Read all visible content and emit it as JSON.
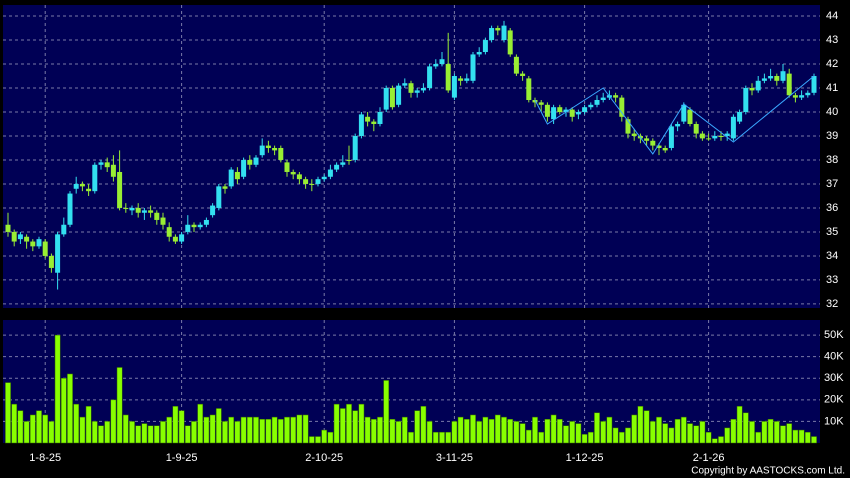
{
  "chart_data": {
    "type": "candlestick",
    "categories": [
      null,
      null,
      null,
      null,
      null,
      null,
      "1-8-25",
      null,
      null,
      null,
      null,
      null,
      null,
      null,
      null,
      null,
      null,
      null,
      null,
      null,
      null,
      null,
      null,
      null,
      null,
      null,
      null,
      null,
      "1-9-25",
      null,
      null,
      null,
      null,
      null,
      null,
      null,
      null,
      null,
      null,
      null,
      null,
      null,
      null,
      null,
      null,
      null,
      null,
      null,
      null,
      null,
      null,
      "2-10-25",
      null,
      null,
      null,
      null,
      null,
      null,
      null,
      null,
      null,
      null,
      null,
      null,
      null,
      null,
      null,
      null,
      null,
      null,
      null,
      null,
      "3-11-25",
      null,
      null,
      null,
      null,
      null,
      null,
      null,
      null,
      null,
      null,
      null,
      null,
      null,
      null,
      null,
      null,
      null,
      null,
      null,
      null,
      "1-12-25",
      null,
      null,
      null,
      null,
      null,
      null,
      null,
      null,
      null,
      null,
      null,
      null,
      null,
      null,
      null,
      null,
      null,
      null,
      null,
      "2-1-26",
      null,
      null,
      null,
      null,
      null,
      null,
      null,
      null,
      null,
      null,
      null,
      null,
      null,
      null,
      null,
      null,
      null
    ],
    "open": [
      35.3,
      35.0,
      34.7,
      34.8,
      34.6,
      34.4,
      34.6,
      34.0,
      33.3,
      34.9,
      35.3,
      36.8,
      37.0,
      36.8,
      36.7,
      37.8,
      37.9,
      37.8,
      37.5,
      36.0,
      35.9,
      36.0,
      35.8,
      35.9,
      35.8,
      35.6,
      35.2,
      34.8,
      34.6,
      35.0,
      35.3,
      35.2,
      35.3,
      35.7,
      36.0,
      36.9,
      36.9,
      37.5,
      37.3,
      38.0,
      37.8,
      38.2,
      38.6,
      38.5,
      38.5,
      37.9,
      37.5,
      37.4,
      37.2,
      37.0,
      37.0,
      37.2,
      37.3,
      37.6,
      37.8,
      38.0,
      38.0,
      39.0,
      39.8,
      39.6,
      39.5,
      40.1,
      41.0,
      40.3,
      41.1,
      41.2,
      40.8,
      40.9,
      41.0,
      41.9,
      42.0,
      42.0,
      40.6,
      41.4,
      41.3,
      41.3,
      42.4,
      42.5,
      43.0,
      43.5,
      43.0,
      43.4,
      42.3,
      41.6,
      41.4,
      40.5,
      40.4,
      40.3,
      39.7,
      40.2,
      40.0,
      40.1,
      39.9,
      40.0,
      40.2,
      40.3,
      40.5,
      40.6,
      40.7,
      40.6,
      39.7,
      39.1,
      39.0,
      38.9,
      38.8,
      38.6,
      38.5,
      38.5,
      39.4,
      39.6,
      40.1,
      39.5,
      39.1,
      38.9,
      38.9,
      39.0,
      39.0,
      38.9,
      39.6,
      40.0,
      41.0,
      40.9,
      41.3,
      41.4,
      41.5,
      41.3,
      41.6,
      40.7,
      40.6,
      40.7,
      40.8
    ],
    "high": [
      35.8,
      35.1,
      35.0,
      34.9,
      34.7,
      34.8,
      34.7,
      34.1,
      35.0,
      35.6,
      36.7,
      37.3,
      37.1,
      37.0,
      37.9,
      38.0,
      38.1,
      38.2,
      38.4,
      36.2,
      36.1,
      36.2,
      36.0,
      36.1,
      35.9,
      35.8,
      35.4,
      34.9,
      35.0,
      35.7,
      35.4,
      35.4,
      35.6,
      36.2,
      37.0,
      37.0,
      37.7,
      37.7,
      38.1,
      38.2,
      38.2,
      38.9,
      38.8,
      38.6,
      38.6,
      38.0,
      37.6,
      37.5,
      37.3,
      37.2,
      37.3,
      37.4,
      37.8,
      37.9,
      38.2,
      38.6,
      39.1,
      40.0,
      40.0,
      39.7,
      40.2,
      41.1,
      41.1,
      41.2,
      41.4,
      41.3,
      41.0,
      41.2,
      42.0,
      42.2,
      42.5,
      43.3,
      41.6,
      41.5,
      41.6,
      42.5,
      42.7,
      43.1,
      43.6,
      43.6,
      43.8,
      43.5,
      42.4,
      41.7,
      41.5,
      40.6,
      40.5,
      40.4,
      40.3,
      40.3,
      40.2,
      40.2,
      40.1,
      40.3,
      40.4,
      40.7,
      40.8,
      40.9,
      40.8,
      40.7,
      39.8,
      39.3,
      39.1,
      39.0,
      38.9,
      38.7,
      38.6,
      39.5,
      39.6,
      40.4,
      40.2,
      39.6,
      39.2,
      39.1,
      39.2,
      39.2,
      39.2,
      39.9,
      40.1,
      41.1,
      41.2,
      41.5,
      41.6,
      41.8,
      41.6,
      42.0,
      41.8,
      40.8,
      40.9,
      40.9,
      41.6
    ],
    "low": [
      34.8,
      34.4,
      34.5,
      34.3,
      34.2,
      34.3,
      33.9,
      33.3,
      32.6,
      34.8,
      35.2,
      36.6,
      36.7,
      36.5,
      36.6,
      37.6,
      37.5,
      37.1,
      35.9,
      35.8,
      35.7,
      35.6,
      35.5,
      35.6,
      35.3,
      35.1,
      34.6,
      34.5,
      34.5,
      34.9,
      35.0,
      35.1,
      35.2,
      35.6,
      35.9,
      36.6,
      36.8,
      37.0,
      37.2,
      37.6,
      37.7,
      38.1,
      38.3,
      38.2,
      37.9,
      37.3,
      37.2,
      37.0,
      36.8,
      36.7,
      36.9,
      37.1,
      37.2,
      37.5,
      37.7,
      37.8,
      37.9,
      38.9,
      39.4,
      39.2,
      39.4,
      40.0,
      40.1,
      40.2,
      41.0,
      40.6,
      40.6,
      40.8,
      40.9,
      41.8,
      41.9,
      40.8,
      40.5,
      41.1,
      41.2,
      41.2,
      42.3,
      42.4,
      42.9,
      43.2,
      42.9,
      42.3,
      41.5,
      41.3,
      40.4,
      40.2,
      40.0,
      39.6,
      39.5,
      39.9,
      39.8,
      39.6,
      39.7,
      39.9,
      40.1,
      40.2,
      40.4,
      40.5,
      40.4,
      39.6,
      38.9,
      38.8,
      38.7,
      38.6,
      38.4,
      38.2,
      38.3,
      38.4,
      39.2,
      39.5,
      39.4,
      38.9,
      38.8,
      38.8,
      38.8,
      38.8,
      38.8,
      38.8,
      39.5,
      39.9,
      40.7,
      40.8,
      41.2,
      41.3,
      41.1,
      41.2,
      40.6,
      40.4,
      40.5,
      40.6,
      40.7
    ],
    "close": [
      35.0,
      34.6,
      34.9,
      34.6,
      34.4,
      34.7,
      34.0,
      33.5,
      34.9,
      35.3,
      36.6,
      37.0,
      36.9,
      36.7,
      37.8,
      37.9,
      37.7,
      37.3,
      36.0,
      36.0,
      36.0,
      35.8,
      35.9,
      35.8,
      35.5,
      35.3,
      34.8,
      34.6,
      34.9,
      35.3,
      35.2,
      35.3,
      35.5,
      36.1,
      36.9,
      36.8,
      37.6,
      37.2,
      38.0,
      37.8,
      38.1,
      38.6,
      38.5,
      38.4,
      38.0,
      37.5,
      37.4,
      37.2,
      37.0,
      37.0,
      37.2,
      37.3,
      37.6,
      37.8,
      37.9,
      38.0,
      39.0,
      39.9,
      39.6,
      39.5,
      40.0,
      41.0,
      40.2,
      41.1,
      41.2,
      40.8,
      40.9,
      41.0,
      41.9,
      42.0,
      42.2,
      40.9,
      41.5,
      41.3,
      41.4,
      42.4,
      42.5,
      43.0,
      43.5,
      43.4,
      43.6,
      42.4,
      41.6,
      41.5,
      40.5,
      40.4,
      40.3,
      39.8,
      40.2,
      40.0,
      40.1,
      39.8,
      40.0,
      40.2,
      40.3,
      40.5,
      40.6,
      40.7,
      40.6,
      39.8,
      39.1,
      39.0,
      38.9,
      38.8,
      38.6,
      38.5,
      38.4,
      39.4,
      39.5,
      40.3,
      39.5,
      39.1,
      38.9,
      38.9,
      39.0,
      39.0,
      39.1,
      39.8,
      40.0,
      41.0,
      40.9,
      41.3,
      41.4,
      41.5,
      41.3,
      41.7,
      40.7,
      40.6,
      40.7,
      40.8,
      41.5
    ],
    "volume": [
      28000,
      18000,
      15000,
      10000,
      13000,
      15000,
      13000,
      10000,
      50000,
      30000,
      32000,
      18000,
      12000,
      17000,
      10000,
      8000,
      10000,
      20000,
      35000,
      13000,
      10000,
      8000,
      9000,
      8000,
      8000,
      10000,
      12000,
      17000,
      15000,
      8000,
      10000,
      18000,
      12000,
      13000,
      16000,
      10000,
      12000,
      10000,
      12000,
      12000,
      12000,
      11000,
      11000,
      12000,
      11000,
      12000,
      12000,
      13000,
      13000,
      3000,
      3000,
      6000,
      5000,
      18000,
      16000,
      18000,
      15000,
      18000,
      12000,
      11000,
      12000,
      29000,
      11000,
      10000,
      12000,
      5000,
      15000,
      17000,
      10000,
      5000,
      5000,
      5000,
      10000,
      12000,
      11000,
      13000,
      10000,
      12000,
      11000,
      13000,
      12000,
      11000,
      10000,
      9000,
      6000,
      12000,
      5000,
      11000,
      13000,
      11000,
      8000,
      10000,
      9000,
      4000,
      5000,
      14000,
      10000,
      12000,
      7000,
      5000,
      7000,
      13000,
      17000,
      15000,
      10000,
      12000,
      9000,
      7000,
      11000,
      12000,
      9000,
      8000,
      10000,
      5000,
      2000,
      3000,
      7000,
      11000,
      17000,
      14000,
      10000,
      5000,
      10000,
      11000,
      10000,
      8000,
      9000,
      6000,
      6000,
      5000,
      3000
    ],
    "up_color": "#33e0f0",
    "down_color": "#99ee33",
    "volume_color": "#88ff00",
    "zigzag": {
      "color": "#3aa8ff",
      "x": [
        85,
        87,
        96,
        104,
        109,
        117,
        130
      ],
      "values": [
        40.5,
        39.5,
        41.0,
        38.25,
        40.33,
        38.75,
        41.5
      ]
    },
    "ylim": [
      31.83,
      44.46
    ],
    "yticks": [
      32,
      33,
      34,
      35,
      36,
      37,
      38,
      39,
      40,
      41,
      42,
      43,
      44
    ],
    "volume_ylim": [
      0,
      57000
    ],
    "volume_yticks": [
      {
        "value": 10000,
        "label": "10K"
      },
      {
        "value": 20000,
        "label": "20K"
      },
      {
        "value": 30000,
        "label": "30K"
      },
      {
        "value": 40000,
        "label": "40K"
      },
      {
        "value": 50000,
        "label": "50K"
      }
    ],
    "grid": true,
    "copyright": "Copyright by AASTOCKS.com Ltd."
  }
}
